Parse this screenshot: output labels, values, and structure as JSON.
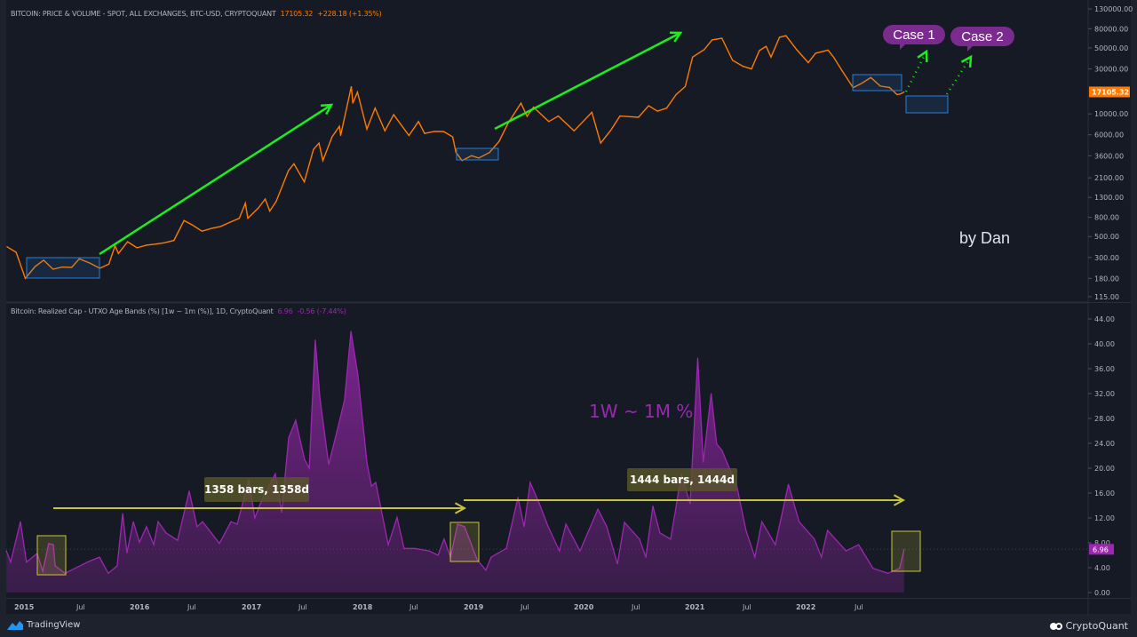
{
  "top_legend": {
    "title": "BITCOIN: PRICE & VOLUME - SPOT, ALL EXCHANGES, BTC-USD, CRYPTOQUANT",
    "last": "17105.32",
    "change": "+228.18 (+1.35%)"
  },
  "bottom_legend": {
    "title": "Bitcoin: Realized Cap - UTXO Age Bands (%) [1w ~ 1m (%)], 1D, CryptoQuant",
    "last": "6.96",
    "change": "-0.56 (-7.44%)"
  },
  "annotations": {
    "case1": "Case 1",
    "case2": "Case 2",
    "author": "by Dan",
    "band_label": "1W ~ 1M %",
    "range1": "1358 bars, 1358d",
    "range2": "1444 bars, 1444d"
  },
  "footer": {
    "left": "TradingView",
    "right": "CryptoQuant"
  },
  "colors": {
    "price": "#ff7a00",
    "indicator": "#9c27b0",
    "arrow": "#1bee1b",
    "box": "#2a7fd4",
    "range": "#c8c43a",
    "background": "#161a25"
  },
  "chart_data": [
    {
      "type": "line",
      "title": "BITCOIN: PRICE & VOLUME - SPOT, ALL EXCHANGES, BTC-USD, CRYPTOQUANT",
      "yscale": "log",
      "ylim": [
        115,
        130000
      ],
      "yticks": [
        "130000.00",
        "80000.00",
        "50000.00",
        "30000.00",
        "10000.00",
        "6000.00",
        "3600.00",
        "2100.00",
        "1300.00",
        "800.00",
        "500.00",
        "300.00",
        "180.00",
        "115.00"
      ],
      "last_value_label": "17105.32",
      "series": [
        {
          "points": [
            [
              "2014-11-15",
              390
            ],
            [
              "2014-12-15",
              340
            ],
            [
              "2015-01-14",
              180
            ],
            [
              "2015-02-15",
              240
            ],
            [
              "2015-03-15",
              280
            ],
            [
              "2015-04-15",
              225
            ],
            [
              "2015-05-15",
              237
            ],
            [
              "2015-06-15",
              235
            ],
            [
              "2015-07-10",
              290
            ],
            [
              "2015-08-15",
              260
            ],
            [
              "2015-09-15",
              230
            ],
            [
              "2015-10-15",
              255
            ],
            [
              "2015-11-04",
              400
            ],
            [
              "2015-11-15",
              330
            ],
            [
              "2015-12-15",
              440
            ],
            [
              "2016-01-15",
              380
            ],
            [
              "2016-02-15",
              405
            ],
            [
              "2016-03-15",
              415
            ],
            [
              "2016-04-15",
              430
            ],
            [
              "2016-05-15",
              455
            ],
            [
              "2016-06-17",
              740
            ],
            [
              "2016-07-15",
              660
            ],
            [
              "2016-08-15",
              570
            ],
            [
              "2016-09-15",
              610
            ],
            [
              "2016-10-15",
              640
            ],
            [
              "2016-11-15",
              710
            ],
            [
              "2016-12-15",
              780
            ],
            [
              "2017-01-04",
              1130
            ],
            [
              "2017-01-12",
              780
            ],
            [
              "2017-02-15",
              1000
            ],
            [
              "2017-03-10",
              1250
            ],
            [
              "2017-03-25",
              930
            ],
            [
              "2017-04-15",
              1180
            ],
            [
              "2017-05-25",
              2500
            ],
            [
              "2017-06-12",
              2950
            ],
            [
              "2017-07-16",
              1900
            ],
            [
              "2017-08-15",
              4200
            ],
            [
              "2017-09-02",
              4900
            ],
            [
              "2017-09-15",
              3200
            ],
            [
              "2017-10-15",
              5700
            ],
            [
              "2017-11-08",
              7400
            ],
            [
              "2017-11-12",
              5900
            ],
            [
              "2017-12-17",
              19500
            ],
            [
              "2017-12-22",
              13000
            ],
            [
              "2018-01-06",
              17000
            ],
            [
              "2018-02-06",
              6900
            ],
            [
              "2018-03-05",
              11500
            ],
            [
              "2018-04-06",
              6600
            ],
            [
              "2018-05-05",
              9800
            ],
            [
              "2018-06-24",
              5900
            ],
            [
              "2018-07-25",
              8300
            ],
            [
              "2018-08-14",
              6200
            ],
            [
              "2018-09-15",
              6500
            ],
            [
              "2018-10-15",
              6500
            ],
            [
              "2018-11-14",
              5700
            ],
            [
              "2018-11-25",
              3900
            ],
            [
              "2018-12-15",
              3200
            ],
            [
              "2019-01-15",
              3600
            ],
            [
              "2019-02-08",
              3400
            ],
            [
              "2019-03-15",
              3900
            ],
            [
              "2019-04-15",
              5100
            ],
            [
              "2019-05-15",
              8000
            ],
            [
              "2019-06-26",
              13000
            ],
            [
              "2019-07-16",
              9400
            ],
            [
              "2019-08-06",
              11800
            ],
            [
              "2019-09-25",
              8300
            ],
            [
              "2019-10-26",
              9500
            ],
            [
              "2019-12-17",
              6600
            ],
            [
              "2020-02-13",
              10400
            ],
            [
              "2020-03-13",
              4900
            ],
            [
              "2020-04-15",
              6700
            ],
            [
              "2020-05-15",
              9500
            ],
            [
              "2020-07-15",
              9200
            ],
            [
              "2020-08-17",
              12200
            ],
            [
              "2020-09-15",
              10700
            ],
            [
              "2020-10-15",
              11500
            ],
            [
              "2020-11-15",
              16000
            ],
            [
              "2020-12-15",
              19500
            ],
            [
              "2021-01-08",
              40000
            ],
            [
              "2021-02-15",
              48000
            ],
            [
              "2021-03-13",
              61000
            ],
            [
              "2021-04-14",
              63500
            ],
            [
              "2021-05-19",
              37000
            ],
            [
              "2021-06-22",
              32000
            ],
            [
              "2021-07-20",
              30000
            ],
            [
              "2021-08-15",
              47000
            ],
            [
              "2021-09-06",
              52000
            ],
            [
              "2021-09-22",
              40000
            ],
            [
              "2021-10-20",
              65000
            ],
            [
              "2021-11-10",
              67500
            ],
            [
              "2021-12-15",
              48000
            ],
            [
              "2022-01-22",
              35000
            ],
            [
              "2022-02-15",
              44000
            ],
            [
              "2022-03-28",
              47500
            ],
            [
              "2022-04-15",
              40000
            ],
            [
              "2022-05-12",
              29000
            ],
            [
              "2022-06-18",
              19000
            ],
            [
              "2022-07-15",
              21000
            ],
            [
              "2022-08-15",
              24300
            ],
            [
              "2022-09-15",
              19700
            ],
            [
              "2022-10-15",
              19100
            ],
            [
              "2022-11-09",
              16000
            ],
            [
              "2022-11-20",
              16300
            ],
            [
              "2022-12-02",
              17105.32
            ]
          ]
        }
      ]
    },
    {
      "type": "area",
      "title": "Bitcoin: Realized Cap - UTXO Age Bands (%) [1w ~ 1m (%)], 1D, CryptoQuant",
      "ylim": [
        0,
        44
      ],
      "yticks": [
        "44.00",
        "40.00",
        "36.00",
        "32.00",
        "28.00",
        "24.00",
        "20.00",
        "16.00",
        "12.00",
        "8.00",
        "4.00",
        "0.00"
      ],
      "last_value_label": "6.96",
      "xticks": [
        "2015",
        "Jul",
        "2016",
        "Jul",
        "2017",
        "Jul",
        "2018",
        "Jul",
        "2019",
        "Jul",
        "2020",
        "Jul",
        "2021",
        "Jul",
        "2022",
        "Jul"
      ],
      "series": [
        {
          "points": [
            [
              "2014-11-13",
              6.7
            ],
            [
              "2014-11-27",
              4.9
            ],
            [
              "2014-12-29",
              11.4
            ],
            [
              "2015-01-18",
              4.9
            ],
            [
              "2015-02-22",
              6.3
            ],
            [
              "2015-03-12",
              3.4
            ],
            [
              "2015-04-01",
              7.9
            ],
            [
              "2015-04-16",
              7.7
            ],
            [
              "2015-04-22",
              4.3
            ],
            [
              "2015-05-24",
              3.1
            ],
            [
              "2015-08-10",
              5
            ],
            [
              "2015-09-14",
              5.7
            ],
            [
              "2015-10-13",
              3.1
            ],
            [
              "2015-11-11",
              4.3
            ],
            [
              "2015-11-29",
              12.7
            ],
            [
              "2015-12-13",
              6.4
            ],
            [
              "2016-01-03",
              11.4
            ],
            [
              "2016-01-23",
              8.1
            ],
            [
              "2016-02-15",
              10.6
            ],
            [
              "2016-03-10",
              7.7
            ],
            [
              "2016-03-24",
              11.4
            ],
            [
              "2016-04-19",
              9.6
            ],
            [
              "2016-05-27",
              8.4
            ],
            [
              "2016-07-04",
              16.3
            ],
            [
              "2016-07-30",
              10.6
            ],
            [
              "2016-08-17",
              11.4
            ],
            [
              "2016-10-11",
              7.9
            ],
            [
              "2016-11-18",
              11.4
            ],
            [
              "2016-12-08",
              11
            ],
            [
              "2017-01-15",
              18.1
            ],
            [
              "2017-02-04",
              12
            ],
            [
              "2017-02-22",
              14.3
            ],
            [
              "2017-04-12",
              19.1
            ],
            [
              "2017-05-03",
              12.9
            ],
            [
              "2017-05-26",
              24.9
            ],
            [
              "2017-06-18",
              27.7
            ],
            [
              "2017-07-17",
              21.4
            ],
            [
              "2017-08-01",
              20
            ],
            [
              "2017-08-21",
              40.6
            ],
            [
              "2017-09-05",
              31.4
            ],
            [
              "2017-10-04",
              20.6
            ],
            [
              "2017-11-02",
              26.3
            ],
            [
              "2017-11-25",
              31
            ],
            [
              "2017-12-16",
              42
            ],
            [
              "2018-01-08",
              34.9
            ],
            [
              "2018-02-06",
              21
            ],
            [
              "2018-02-21",
              17.1
            ],
            [
              "2018-03-07",
              17.7
            ],
            [
              "2018-04-17",
              7.7
            ],
            [
              "2018-05-16",
              12.1
            ],
            [
              "2018-06-08",
              7.1
            ],
            [
              "2018-07-13",
              7.1
            ],
            [
              "2018-08-29",
              6.7
            ],
            [
              "2018-09-27",
              6
            ],
            [
              "2018-10-17",
              8.6
            ],
            [
              "2018-11-07",
              5.7
            ],
            [
              "2018-11-30",
              11
            ],
            [
              "2018-12-23",
              10.6
            ],
            [
              "2019-02-02",
              5.3
            ],
            [
              "2019-03-03",
              3.6
            ],
            [
              "2019-03-20",
              5.7
            ],
            [
              "2019-05-09",
              7.1
            ],
            [
              "2019-06-16",
              15.3
            ],
            [
              "2019-07-06",
              10.6
            ],
            [
              "2019-07-26",
              17.7
            ],
            [
              "2019-08-25",
              14.3
            ],
            [
              "2019-09-23",
              10.6
            ],
            [
              "2019-10-30",
              6.7
            ],
            [
              "2019-11-20",
              11
            ],
            [
              "2020-01-05",
              6.7
            ],
            [
              "2020-03-04",
              13.4
            ],
            [
              "2020-04-02",
              10.6
            ],
            [
              "2020-05-07",
              4.6
            ],
            [
              "2020-05-30",
              11.3
            ],
            [
              "2020-07-18",
              8.6
            ],
            [
              "2020-08-08",
              5.7
            ],
            [
              "2020-08-31",
              13.9
            ],
            [
              "2020-09-23",
              9.6
            ],
            [
              "2020-10-28",
              8.6
            ],
            [
              "2020-11-12",
              12.9
            ],
            [
              "2020-12-02",
              19.1
            ],
            [
              "2020-12-31",
              14.3
            ],
            [
              "2021-01-25",
              37.7
            ],
            [
              "2021-02-12",
              21
            ],
            [
              "2021-03-10",
              32
            ],
            [
              "2021-03-28",
              23.9
            ],
            [
              "2021-04-14",
              22.9
            ],
            [
              "2021-06-02",
              17.1
            ],
            [
              "2021-07-02",
              10
            ],
            [
              "2021-07-31",
              5.7
            ],
            [
              "2021-08-23",
              11.4
            ],
            [
              "2021-10-06",
              7.7
            ],
            [
              "2021-11-18",
              17.4
            ],
            [
              "2021-12-23",
              11.4
            ],
            [
              "2022-02-11",
              8.6
            ],
            [
              "2022-03-06",
              5.7
            ],
            [
              "2022-03-26",
              10
            ],
            [
              "2022-05-26",
              6.7
            ],
            [
              "2022-07-06",
              7.7
            ],
            [
              "2022-08-22",
              3.9
            ],
            [
              "2022-10-10",
              3.1
            ],
            [
              "2022-11-17",
              3.9
            ],
            [
              "2022-12-02",
              6.96
            ]
          ]
        }
      ]
    }
  ]
}
